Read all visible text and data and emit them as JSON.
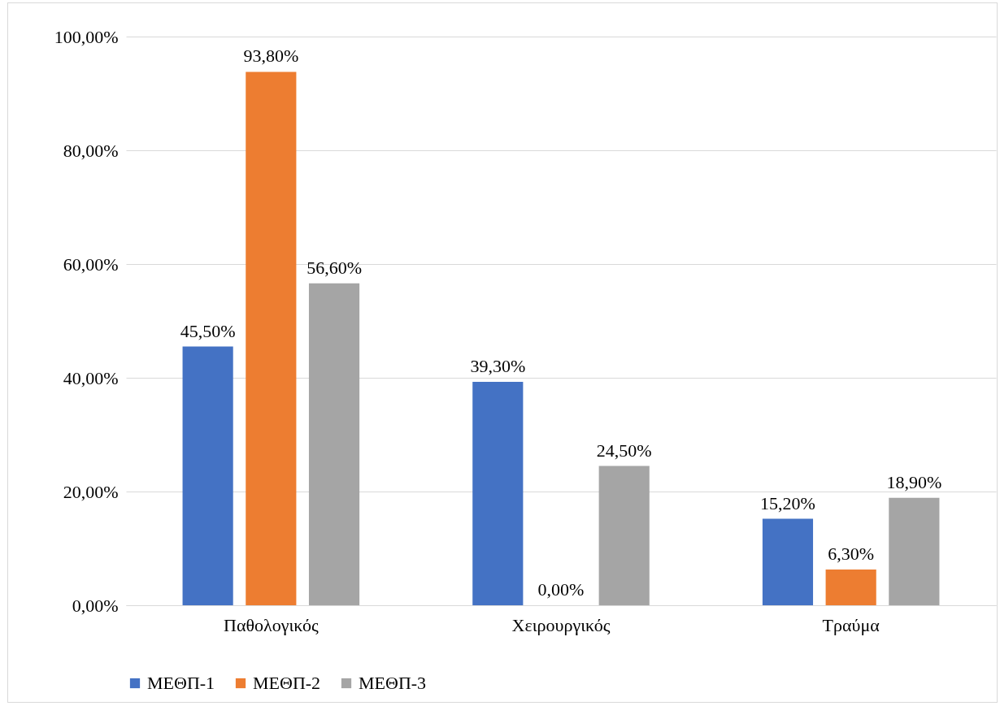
{
  "chart_data": {
    "type": "bar",
    "categories": [
      "Παθολογικός",
      "Χειρουργικός",
      "Τραύμα"
    ],
    "series": [
      {
        "name": "ΜΕΘΠ-1",
        "color": "#4472c4",
        "values": [
          45.5,
          39.3,
          15.2
        ],
        "value_labels": [
          "45,50%",
          "39,30%",
          "15,20%"
        ]
      },
      {
        "name": "ΜΕΘΠ-2",
        "color": "#ed7d31",
        "values": [
          93.8,
          0,
          6.3
        ],
        "value_labels": [
          "93,80%",
          "0,00%",
          "6,30%"
        ]
      },
      {
        "name": "ΜΕΘΠ-3",
        "color": "#a5a5a5",
        "values": [
          56.6,
          24.5,
          18.9
        ],
        "value_labels": [
          "56,60%",
          "24,50%",
          "18,90%"
        ]
      }
    ],
    "ylim": [
      0,
      100
    ],
    "yticks": [
      {
        "value": 0,
        "label": "0,00%"
      },
      {
        "value": 20,
        "label": "20,00%"
      },
      {
        "value": 40,
        "label": "40,00%"
      },
      {
        "value": 60,
        "label": "60,00%"
      },
      {
        "value": 80,
        "label": "80,00%"
      },
      {
        "value": 100,
        "label": "100,00%"
      }
    ],
    "grid": "y",
    "legend": "bottom"
  }
}
